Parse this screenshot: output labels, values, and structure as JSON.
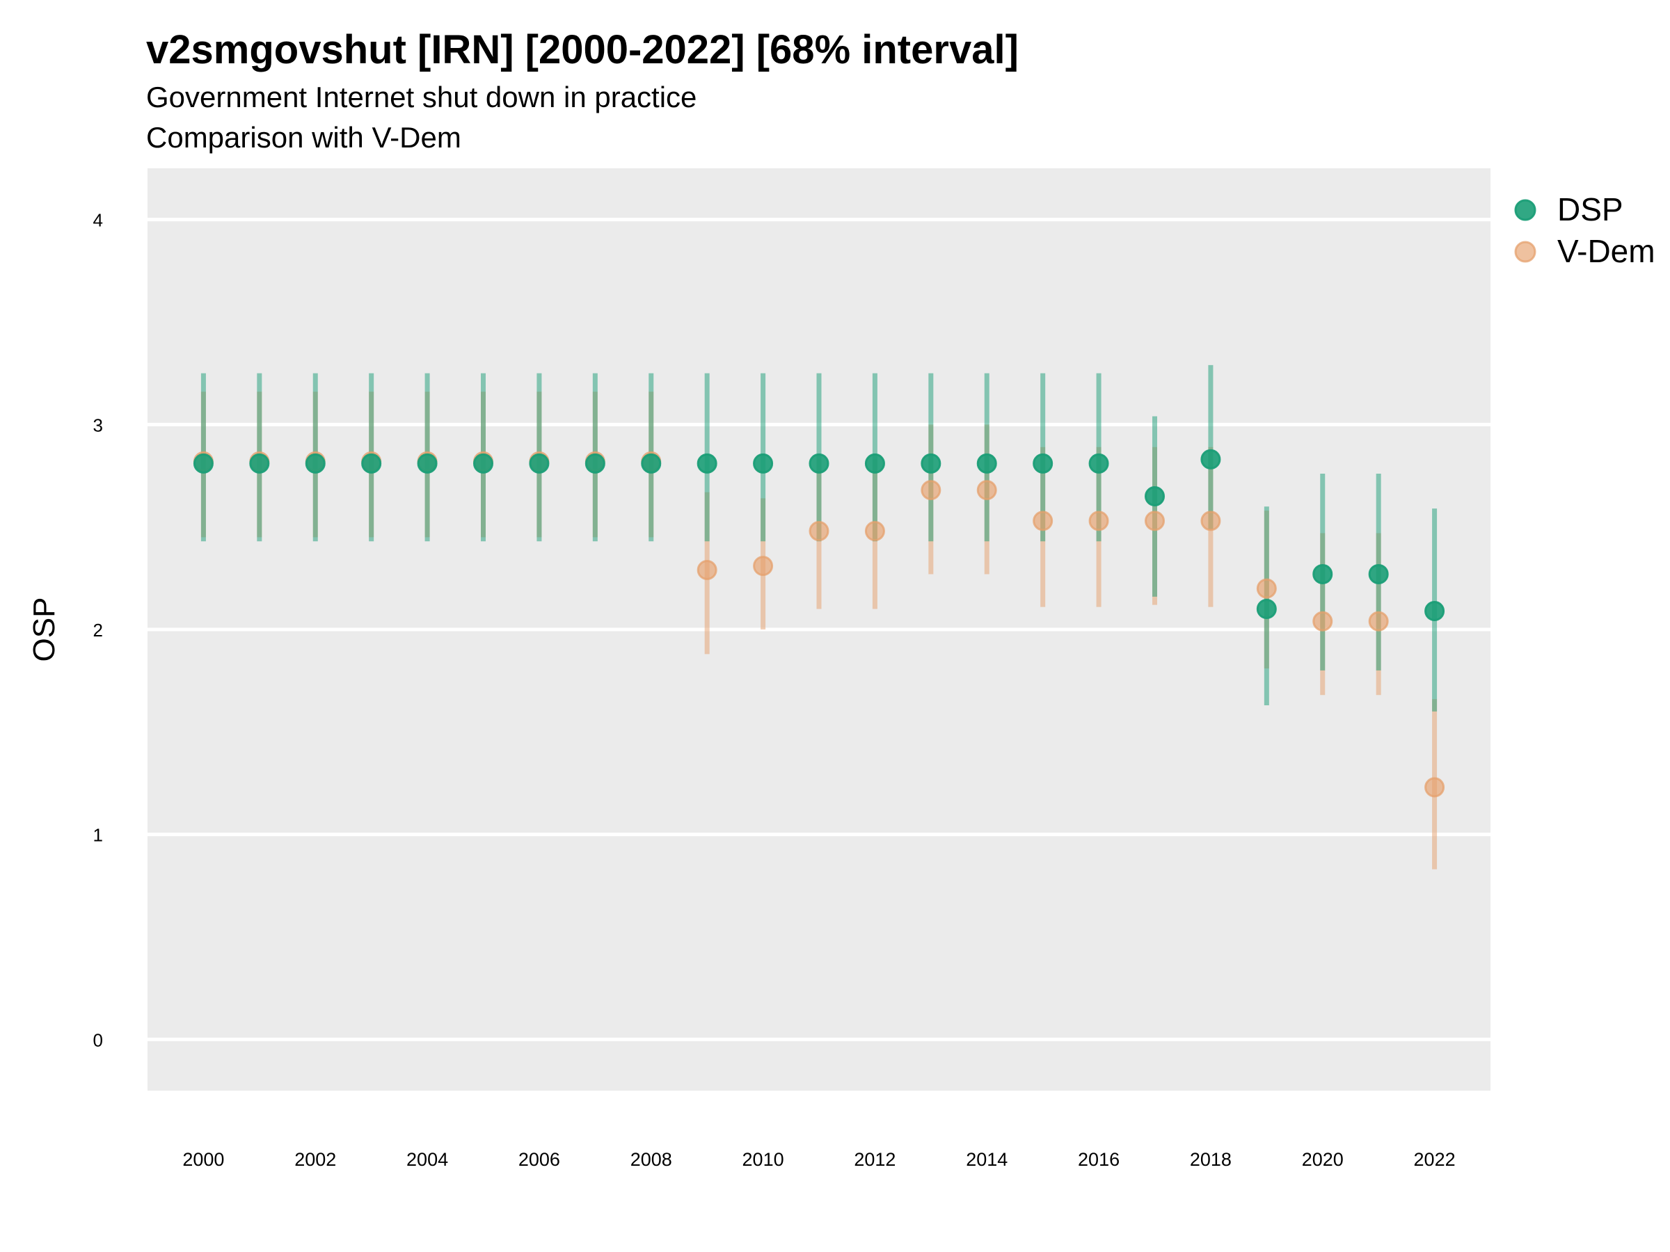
{
  "title": "v2smgovshut [IRN] [2000-2022] [68% interval]",
  "subtitle_1": "Government Internet shut down in practice",
  "subtitle_2": "Comparison with V-Dem",
  "colors": {
    "panel": "#EBEBEB",
    "grid": "#FFFFFF",
    "dsp": "#1B9E77",
    "vdem": "#E6A06C",
    "text": "#000000"
  },
  "chart_data": {
    "type": "scatter",
    "title": "v2smgovshut [IRN] [2000-2022] [68% interval]",
    "xlabel": "",
    "ylabel": "OSP",
    "ylim": [
      -0.25,
      4.25
    ],
    "xlim": [
      1999,
      2023
    ],
    "y_ticks": [
      "0",
      "1",
      "2",
      "3",
      "4"
    ],
    "x_ticks": [
      "2000",
      "2002",
      "2004",
      "2006",
      "2008",
      "2010",
      "2012",
      "2014",
      "2016",
      "2018",
      "2020",
      "2022"
    ],
    "grid": true,
    "legend_position": "right",
    "x": [
      2000,
      2001,
      2002,
      2003,
      2004,
      2005,
      2006,
      2007,
      2008,
      2009,
      2010,
      2011,
      2012,
      2013,
      2014,
      2015,
      2016,
      2017,
      2018,
      2019,
      2020,
      2021,
      2022
    ],
    "series": [
      {
        "name": "DSP",
        "color": "#1B9E77",
        "values": [
          2.81,
          2.81,
          2.81,
          2.81,
          2.81,
          2.81,
          2.81,
          2.81,
          2.81,
          2.81,
          2.81,
          2.81,
          2.81,
          2.81,
          2.81,
          2.81,
          2.81,
          2.65,
          2.83,
          2.1,
          2.27,
          2.27,
          2.09
        ],
        "lower": [
          2.43,
          2.43,
          2.43,
          2.43,
          2.43,
          2.43,
          2.43,
          2.43,
          2.43,
          2.43,
          2.43,
          2.43,
          2.43,
          2.43,
          2.43,
          2.43,
          2.43,
          2.16,
          2.49,
          1.63,
          1.8,
          1.8,
          1.6
        ],
        "upper": [
          3.25,
          3.25,
          3.25,
          3.25,
          3.25,
          3.25,
          3.25,
          3.25,
          3.25,
          3.25,
          3.25,
          3.25,
          3.25,
          3.25,
          3.25,
          3.25,
          3.25,
          3.04,
          3.29,
          2.6,
          2.76,
          2.76,
          2.59
        ]
      },
      {
        "name": "V-Dem",
        "color": "#E6A06C",
        "values": [
          2.82,
          2.82,
          2.82,
          2.82,
          2.82,
          2.82,
          2.82,
          2.82,
          2.82,
          2.29,
          2.31,
          2.48,
          2.48,
          2.68,
          2.68,
          2.53,
          2.53,
          2.53,
          2.53,
          2.2,
          2.04,
          2.04,
          1.23
        ],
        "lower": [
          2.45,
          2.45,
          2.45,
          2.45,
          2.45,
          2.45,
          2.45,
          2.45,
          2.45,
          1.88,
          2.0,
          2.1,
          2.1,
          2.27,
          2.27,
          2.11,
          2.11,
          2.12,
          2.11,
          1.81,
          1.68,
          1.68,
          0.83
        ],
        "upper": [
          3.16,
          3.16,
          3.16,
          3.16,
          3.16,
          3.16,
          3.16,
          3.16,
          3.16,
          2.67,
          2.64,
          2.83,
          2.83,
          3.0,
          3.0,
          2.89,
          2.89,
          2.89,
          2.89,
          2.58,
          2.47,
          2.47,
          1.66
        ]
      }
    ]
  }
}
